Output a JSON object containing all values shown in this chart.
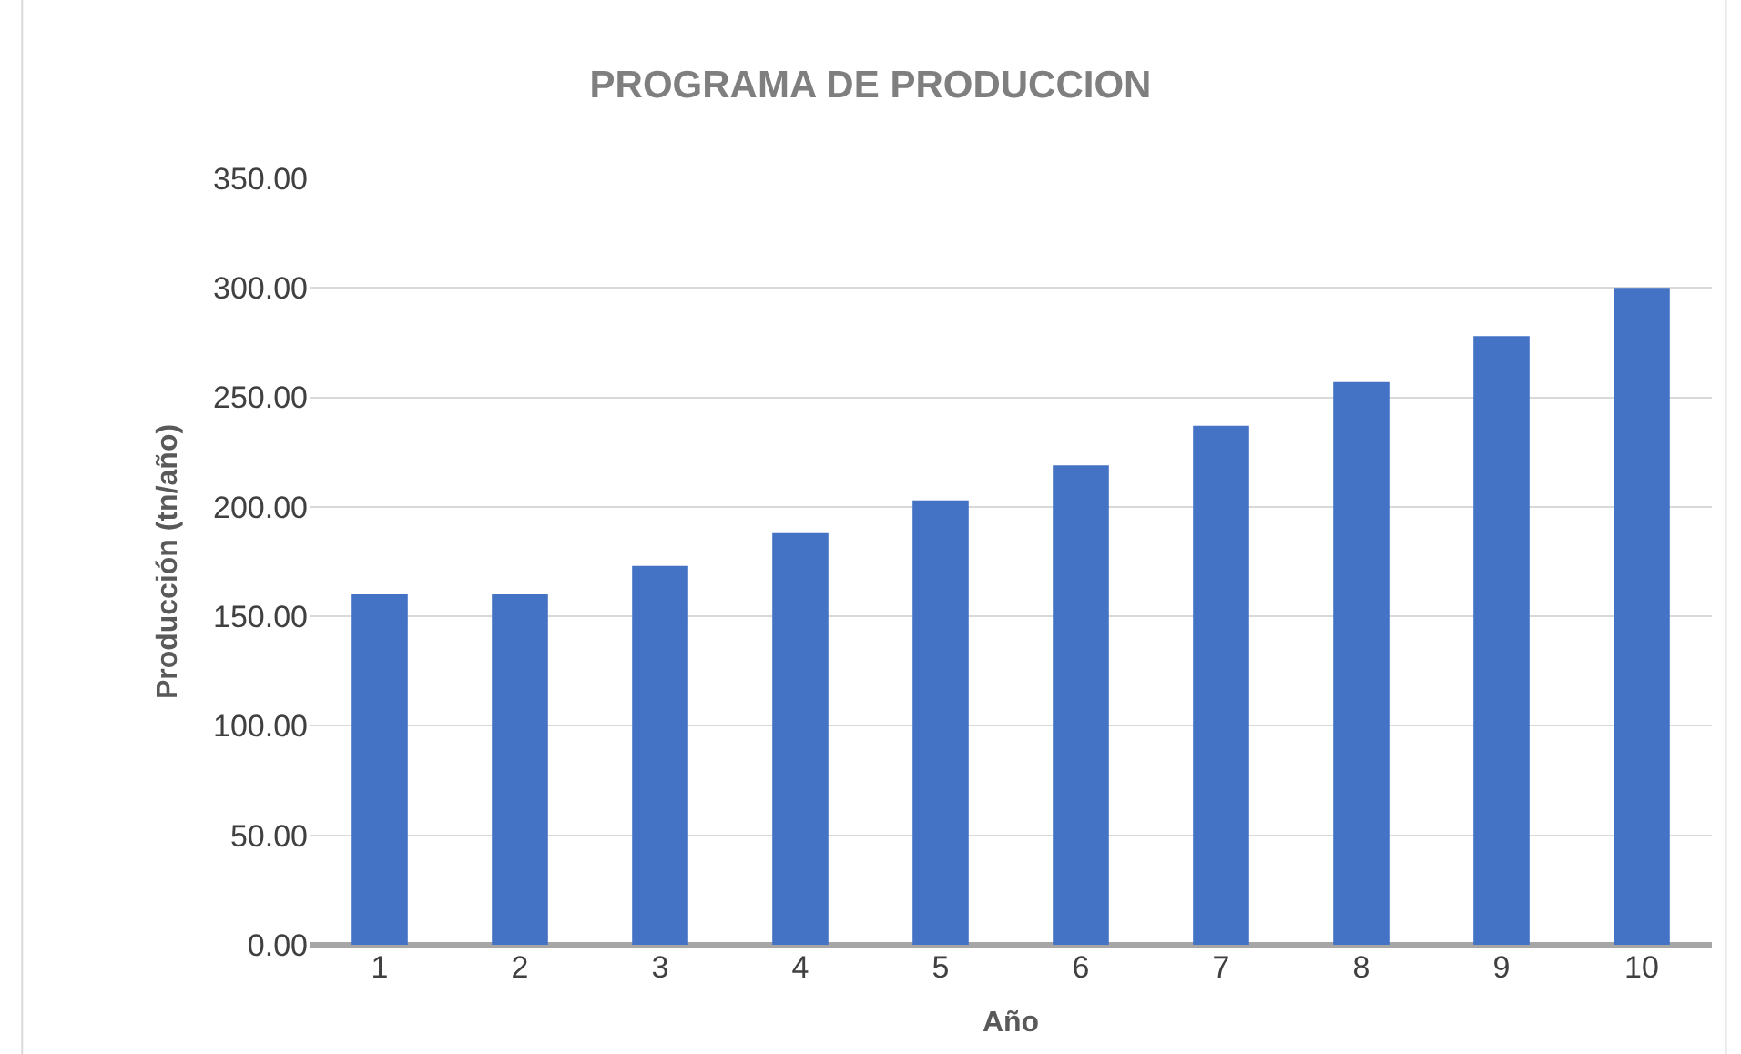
{
  "chart_data": {
    "type": "bar",
    "title": "PROGRAMA DE PRODUCCION",
    "xlabel": "Año",
    "ylabel": "Producción (tn/año)",
    "categories": [
      "1",
      "2",
      "3",
      "4",
      "5",
      "6",
      "7",
      "8",
      "9",
      "10"
    ],
    "series": [
      {
        "color": "#4472c4",
        "values": [
          160,
          160,
          173,
          188,
          203,
          219,
          237,
          257,
          278,
          300
        ]
      }
    ],
    "ylim": [
      0,
      350
    ],
    "yticks": [
      {
        "value": 0,
        "label": "0.00"
      },
      {
        "value": 50,
        "label": "50.00"
      },
      {
        "value": 100,
        "label": "100.00"
      },
      {
        "value": 150,
        "label": "150.00"
      },
      {
        "value": 200,
        "label": "200.00"
      },
      {
        "value": 250,
        "label": "250.00"
      },
      {
        "value": 300,
        "label": "300.00"
      },
      {
        "value": 350,
        "label": "350.00"
      }
    ],
    "grid": "y"
  }
}
